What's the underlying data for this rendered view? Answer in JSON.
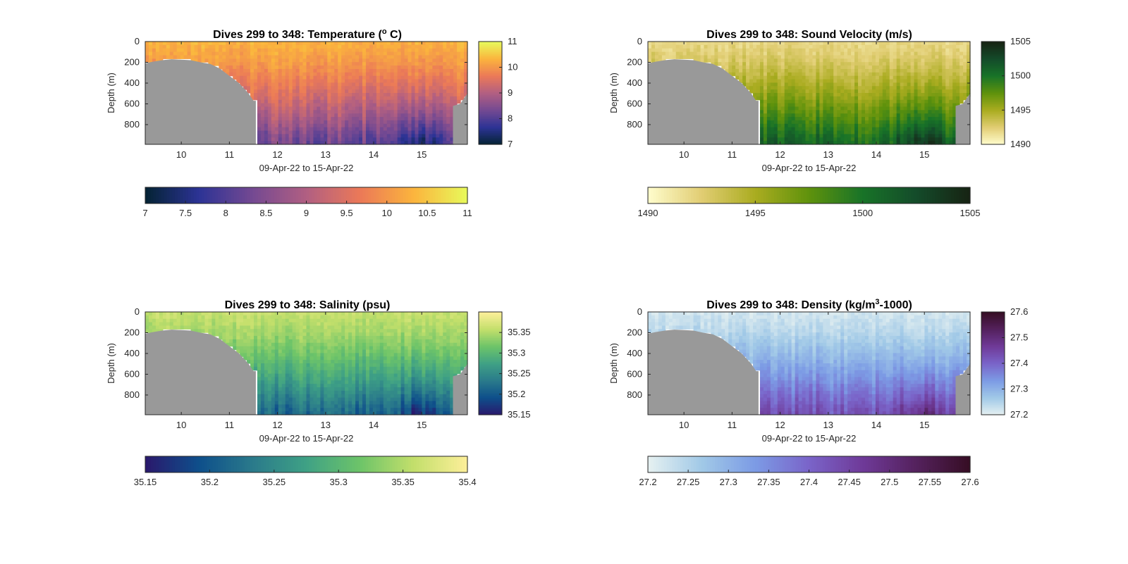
{
  "figure": {
    "panels": [
      {
        "key": "temperature",
        "title_main": "Dives 299 to 348: Temperature (",
        "title_sup": "o",
        "title_end": " C)",
        "colormap": "thermal",
        "clim": [
          7,
          11
        ]
      },
      {
        "key": "sound_velocity",
        "title_main": "Dives 299 to 348: Sound Velocity (m/s)",
        "title_sup": "",
        "title_end": "",
        "colormap": "speed",
        "clim": [
          1490,
          1505
        ]
      },
      {
        "key": "salinity",
        "title_main": "Dives 299 to 348: Salinity (psu)",
        "title_sup": "",
        "title_end": "",
        "colormap": "haline",
        "clim": [
          35.15,
          35.4
        ]
      },
      {
        "key": "density",
        "title_main": "Dives 299 to 348: Density (kg/m",
        "title_sup": "3",
        "title_end": "-1000)",
        "colormap": "dense",
        "clim": [
          27.2,
          27.6
        ]
      }
    ]
  },
  "chart_data": [
    {
      "type": "heatmap",
      "title": "Dives 299 to 348: Temperature (o C)",
      "xlabel": "09-Apr-22 to 15-Apr-22",
      "ylabel": "Depth (m)",
      "x_ticks": [
        "10",
        "11",
        "12",
        "13",
        "14",
        "15"
      ],
      "x_tick_values": [
        10,
        11,
        12,
        13,
        14,
        15
      ],
      "xlim": [
        9.25,
        15.95
      ],
      "y_ticks": [
        "0",
        "200",
        "400",
        "600",
        "800"
      ],
      "y_tick_values": [
        0,
        200,
        400,
        600,
        800
      ],
      "ylim": [
        0,
        990
      ],
      "y_reversed": true,
      "side_colorbar_ticks": [
        "7",
        "8",
        "9",
        "10",
        "11"
      ],
      "side_colorbar_tick_values": [
        7,
        8,
        9,
        10,
        11
      ],
      "bottom_colorbar_ticks": [
        "7",
        "7.5",
        "8",
        "8.5",
        "9",
        "9.5",
        "10",
        "10.5",
        "11"
      ],
      "bottom_colorbar_tick_values": [
        7,
        7.5,
        8,
        8.5,
        9,
        9.5,
        10,
        10.5,
        11
      ],
      "clim": [
        7,
        11
      ],
      "colormap": "thermal",
      "surface_value": 10.3,
      "deep_value": 8.3,
      "ocean_pattern": "warm (10-10.5) near surface, cooling to 8-8.5 at 950 m; coolest near day 14.8-15.2"
    },
    {
      "type": "heatmap",
      "title": "Dives 299 to 348: Sound Velocity (m/s)",
      "xlabel": "09-Apr-22 to 15-Apr-22",
      "ylabel": "Depth (m)",
      "x_ticks": [
        "10",
        "11",
        "12",
        "13",
        "14",
        "15"
      ],
      "x_tick_values": [
        10,
        11,
        12,
        13,
        14,
        15
      ],
      "xlim": [
        9.25,
        15.95
      ],
      "y_ticks": [
        "0",
        "200",
        "400",
        "600",
        "800"
      ],
      "y_tick_values": [
        0,
        200,
        400,
        600,
        800
      ],
      "ylim": [
        0,
        990
      ],
      "y_reversed": true,
      "side_colorbar_ticks": [
        "1490",
        "1495",
        "1500",
        "1505"
      ],
      "side_colorbar_tick_values": [
        1490,
        1495,
        1500,
        1505
      ],
      "bottom_colorbar_ticks": [
        "1490",
        "1495",
        "1500",
        "1505"
      ],
      "bottom_colorbar_tick_values": [
        1490,
        1495,
        1500,
        1505
      ],
      "clim": [
        1490,
        1505
      ],
      "colormap": "speed",
      "surface_value": 1492,
      "deep_value": 1500.5,
      "ocean_pattern": "low (~1492) near surface, increasing with depth to ~1500 at 900 m"
    },
    {
      "type": "heatmap",
      "title": "Dives 299 to 348: Salinity (psu)",
      "xlabel": "09-Apr-22 to 15-Apr-22",
      "ylabel": "Depth (m)",
      "x_ticks": [
        "10",
        "11",
        "12",
        "13",
        "14",
        "15"
      ],
      "x_tick_values": [
        10,
        11,
        12,
        13,
        14,
        15
      ],
      "xlim": [
        9.25,
        15.95
      ],
      "y_ticks": [
        "0",
        "200",
        "400",
        "600",
        "800"
      ],
      "y_tick_values": [
        0,
        200,
        400,
        600,
        800
      ],
      "ylim": [
        0,
        990
      ],
      "y_reversed": true,
      "side_colorbar_ticks": [
        "35.15",
        "35.2",
        "35.25",
        "35.3",
        "35.35"
      ],
      "side_colorbar_tick_values": [
        35.15,
        35.2,
        35.25,
        35.3,
        35.35
      ],
      "bottom_colorbar_ticks": [
        "35.15",
        "35.2",
        "35.25",
        "35.3",
        "35.35",
        "35.4"
      ],
      "bottom_colorbar_tick_values": [
        35.15,
        35.2,
        35.25,
        35.3,
        35.35,
        35.4
      ],
      "clim": [
        35.15,
        35.4
      ],
      "colormap": "haline",
      "surface_value": 35.36,
      "deep_value": 35.22,
      "ocean_pattern": "saline (~35.36) near surface, fresher (~35.2) at depth; freshest near day 15"
    },
    {
      "type": "heatmap",
      "title": "Dives 299 to 348: Density (kg/m3-1000)",
      "xlabel": "09-Apr-22 to 15-Apr-22",
      "ylabel": "Depth (m)",
      "x_ticks": [
        "10",
        "11",
        "12",
        "13",
        "14",
        "15"
      ],
      "x_tick_values": [
        10,
        11,
        12,
        13,
        14,
        15
      ],
      "xlim": [
        9.25,
        15.95
      ],
      "y_ticks": [
        "0",
        "200",
        "400",
        "600",
        "800"
      ],
      "y_tick_values": [
        0,
        200,
        400,
        600,
        800
      ],
      "ylim": [
        0,
        990
      ],
      "y_reversed": true,
      "side_colorbar_ticks": [
        "27.2",
        "27.3",
        "27.4",
        "27.5",
        "27.6"
      ],
      "side_colorbar_tick_values": [
        27.2,
        27.3,
        27.4,
        27.5,
        27.6
      ],
      "bottom_colorbar_ticks": [
        "27.2",
        "27.25",
        "27.3",
        "27.35",
        "27.4",
        "27.45",
        "27.5",
        "27.55",
        "27.6"
      ],
      "bottom_colorbar_tick_values": [
        27.2,
        27.25,
        27.3,
        27.35,
        27.4,
        27.45,
        27.5,
        27.55,
        27.6
      ],
      "clim": [
        27.2,
        27.6
      ],
      "colormap": "dense",
      "surface_value": 27.22,
      "deep_value": 27.42,
      "ocean_pattern": "light (~27.22) near surface, denser (~27.45-27.55) at 950 m; densest near day 15"
    }
  ],
  "seafloor": {
    "color": "#999999",
    "left_mask": {
      "x_end": 11.55,
      "depth_profile_x": [
        9.25,
        9.4,
        9.6,
        9.8,
        10.0,
        10.2,
        10.4,
        10.6,
        10.8,
        11.0,
        11.2,
        11.4,
        11.5
      ],
      "depth_profile_top_m": [
        210,
        195,
        180,
        170,
        175,
        180,
        200,
        215,
        260,
        330,
        400,
        500,
        570
      ]
    },
    "right_mask": {
      "x_start": 15.65,
      "depth_profile_x": [
        15.65,
        15.8,
        15.95
      ],
      "depth_profile_top_m": [
        620,
        600,
        500
      ]
    }
  },
  "colors": {
    "thermal": [
      "#042333",
      "#2c3395",
      "#744992",
      "#b15f82",
      "#eb7958",
      "#fbb43d",
      "#e8fa5b"
    ],
    "speed": [
      "#fffdcd",
      "#e1cd73",
      "#aaac20",
      "#5f920c",
      "#187328",
      "#144b2a",
      "#172313"
    ],
    "haline": [
      "#2a186c",
      "#0e4f8b",
      "#2a7a8b",
      "#3fa185",
      "#6dc469",
      "#c3df6b",
      "#fdef9a"
    ],
    "dense": [
      "#e6f1f1",
      "#a1c9e7",
      "#7c9be5",
      "#7a64c9",
      "#6f3a98",
      "#54215d",
      "#360e24"
    ]
  }
}
